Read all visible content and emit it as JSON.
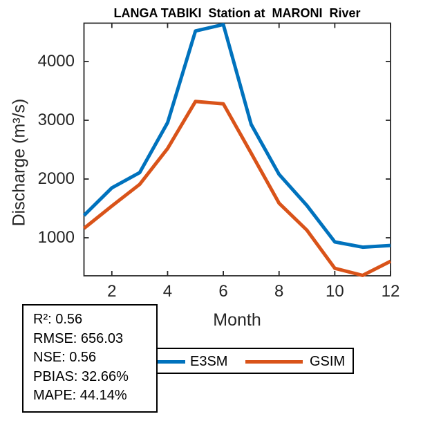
{
  "chart_data": {
    "type": "line",
    "title": "LANGA TABIKI  Station at  MARONI  River",
    "xlabel": "Month",
    "ylabel": "Discharge (m³/s)",
    "x": [
      1,
      2,
      3,
      4,
      5,
      6,
      7,
      8,
      9,
      10,
      11,
      12
    ],
    "xlim": [
      1,
      12
    ],
    "ylim": [
      353,
      4653
    ],
    "xticks": [
      2,
      4,
      6,
      8,
      10,
      12
    ],
    "yticks": [
      1000,
      2000,
      3000,
      4000
    ],
    "grid": false,
    "legend_position": "below x-axis, centered",
    "series": [
      {
        "name": "E3SM",
        "color": "#0072BD",
        "values": [
          1380,
          1850,
          2110,
          2960,
          4520,
          4630,
          2930,
          2080,
          1550,
          930,
          840,
          870
        ]
      },
      {
        "name": "GSIM",
        "color": "#D95319",
        "values": [
          1160,
          1540,
          1910,
          2520,
          3320,
          3280,
          2440,
          1590,
          1130,
          480,
          360,
          600
        ]
      }
    ]
  },
  "stats_box": {
    "lines": [
      "R²: 0.56",
      "RMSE: 656.03",
      "NSE: 0.56",
      "PBIAS: 32.66%",
      "MAPE: 44.14%"
    ]
  },
  "legend": {
    "items": [
      {
        "label": "E3SM",
        "color": "#0072BD"
      },
      {
        "label": "GSIM",
        "color": "#D95319"
      }
    ]
  },
  "colors": {
    "axis": "#262626",
    "tick_text": "#262626",
    "title_text": "#000000",
    "box_border": "#000000",
    "background": "#ffffff"
  }
}
